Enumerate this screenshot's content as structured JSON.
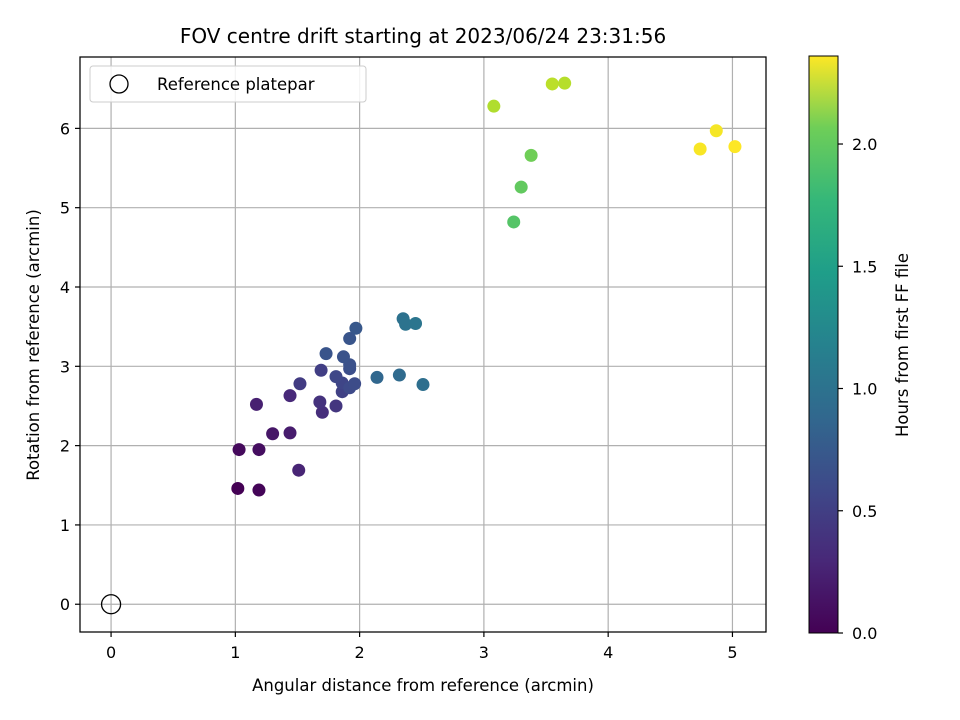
{
  "chart_data": {
    "type": "scatter",
    "title": "FOV centre drift starting at 2023/06/24 23:31:56",
    "xlabel": "Angular distance from reference (arcmin)",
    "ylabel": "Rotation from reference (arcmin)",
    "xlim": [
      -0.25,
      5.27
    ],
    "ylim": [
      -0.35,
      6.9
    ],
    "xticks": [
      0,
      1,
      2,
      3,
      4,
      5
    ],
    "xtick_labels": [
      "0",
      "1",
      "2",
      "3",
      "4",
      "5"
    ],
    "yticks": [
      0,
      1,
      2,
      3,
      4,
      5,
      6
    ],
    "ytick_labels": [
      "0",
      "1",
      "2",
      "3",
      "4",
      "5",
      "6"
    ],
    "grid": true,
    "legend": {
      "placement": "upper-left",
      "entries": [
        {
          "label": "Reference platepar",
          "marker": "open-circle"
        }
      ]
    },
    "reference_point": {
      "x": 0,
      "y": 0
    },
    "colorbar": {
      "label": "Hours from first FF file",
      "colormap": "viridis",
      "range": [
        0,
        2.36
      ],
      "ticks": [
        0.0,
        0.5,
        1.0,
        1.5,
        2.0
      ],
      "tick_labels": [
        "0.0",
        "0.5",
        "1.0",
        "1.5",
        "2.0"
      ]
    },
    "points": [
      {
        "x": 1.02,
        "y": 1.46,
        "c": 0.0
      },
      {
        "x": 1.19,
        "y": 1.44,
        "c": 0.03
      },
      {
        "x": 1.03,
        "y": 1.95,
        "c": 0.06
      },
      {
        "x": 1.19,
        "y": 1.95,
        "c": 0.09
      },
      {
        "x": 1.3,
        "y": 2.15,
        "c": 0.14
      },
      {
        "x": 1.44,
        "y": 2.16,
        "c": 0.18
      },
      {
        "x": 1.17,
        "y": 2.52,
        "c": 0.21
      },
      {
        "x": 1.51,
        "y": 1.69,
        "c": 0.24
      },
      {
        "x": 1.44,
        "y": 2.63,
        "c": 0.27
      },
      {
        "x": 1.7,
        "y": 2.42,
        "c": 0.31
      },
      {
        "x": 1.68,
        "y": 2.55,
        "c": 0.34
      },
      {
        "x": 1.81,
        "y": 2.5,
        "c": 0.37
      },
      {
        "x": 1.52,
        "y": 2.78,
        "c": 0.41
      },
      {
        "x": 1.69,
        "y": 2.95,
        "c": 0.44
      },
      {
        "x": 1.86,
        "y": 2.68,
        "c": 0.46
      },
      {
        "x": 1.86,
        "y": 2.79,
        "c": 0.49
      },
      {
        "x": 1.81,
        "y": 2.87,
        "c": 0.51
      },
      {
        "x": 1.92,
        "y": 2.73,
        "c": 0.53
      },
      {
        "x": 1.96,
        "y": 2.78,
        "c": 0.55
      },
      {
        "x": 1.92,
        "y": 2.97,
        "c": 0.57
      },
      {
        "x": 1.92,
        "y": 3.02,
        "c": 0.59
      },
      {
        "x": 1.87,
        "y": 3.12,
        "c": 0.61
      },
      {
        "x": 1.73,
        "y": 3.16,
        "c": 0.62
      },
      {
        "x": 1.92,
        "y": 3.35,
        "c": 0.63
      },
      {
        "x": 1.97,
        "y": 3.48,
        "c": 0.65
      },
      {
        "x": 2.14,
        "y": 2.86,
        "c": 0.78
      },
      {
        "x": 2.32,
        "y": 2.89,
        "c": 0.82
      },
      {
        "x": 2.51,
        "y": 2.77,
        "c": 0.86
      },
      {
        "x": 2.35,
        "y": 3.6,
        "c": 0.88
      },
      {
        "x": 2.37,
        "y": 3.53,
        "c": 0.9
      },
      {
        "x": 2.45,
        "y": 3.54,
        "c": 0.92
      },
      {
        "x": 3.24,
        "y": 4.82,
        "c": 1.72
      },
      {
        "x": 3.3,
        "y": 5.26,
        "c": 1.78
      },
      {
        "x": 3.38,
        "y": 5.66,
        "c": 1.84
      },
      {
        "x": 3.08,
        "y": 6.28,
        "c": 2.08
      },
      {
        "x": 3.55,
        "y": 6.56,
        "c": 2.12
      },
      {
        "x": 3.65,
        "y": 6.57,
        "c": 2.1
      },
      {
        "x": 4.74,
        "y": 5.74,
        "c": 2.34
      },
      {
        "x": 4.87,
        "y": 5.97,
        "c": 2.33
      },
      {
        "x": 5.02,
        "y": 5.77,
        "c": 2.36
      }
    ]
  }
}
